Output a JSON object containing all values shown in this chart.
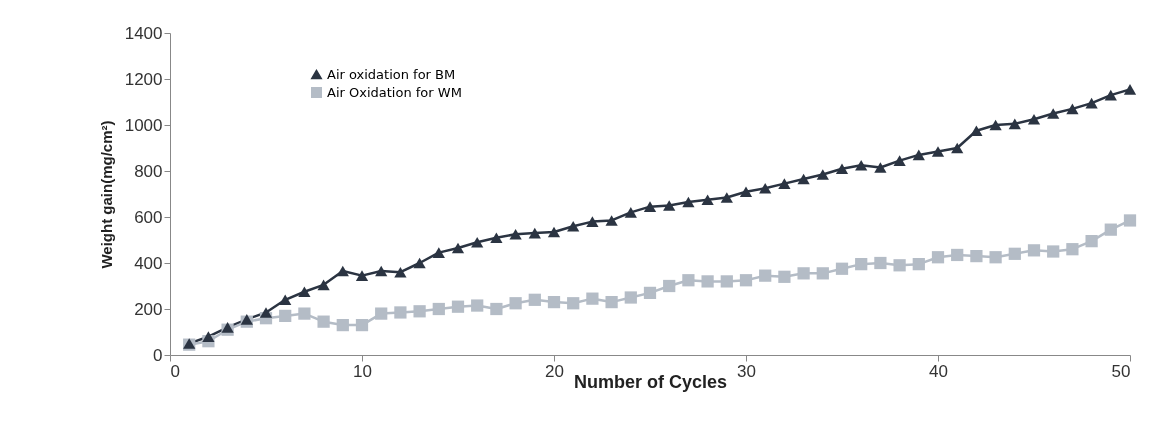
{
  "chart_data": {
    "type": "line",
    "xlabel": "Number of Cycles",
    "ylabel": "Weight gain(mg/cm²)",
    "x": [
      1,
      2,
      3,
      4,
      5,
      6,
      7,
      8,
      9,
      10,
      11,
      12,
      13,
      14,
      15,
      16,
      17,
      18,
      19,
      20,
      21,
      22,
      23,
      24,
      25,
      26,
      27,
      28,
      29,
      30,
      31,
      32,
      33,
      34,
      35,
      36,
      37,
      38,
      39,
      40,
      41,
      42,
      43,
      44,
      45,
      46,
      47,
      48,
      49,
      50
    ],
    "series": [
      {
        "name": "Air oxidation for BM",
        "color": "#2b3442",
        "marker": "triangle",
        "values": [
          50,
          80,
          120,
          155,
          185,
          240,
          275,
          305,
          365,
          345,
          365,
          360,
          400,
          445,
          465,
          490,
          510,
          525,
          530,
          535,
          560,
          580,
          585,
          620,
          645,
          650,
          665,
          675,
          685,
          710,
          725,
          745,
          765,
          785,
          810,
          825,
          815,
          845,
          870,
          885,
          900,
          975,
          1000,
          1005,
          1025,
          1050,
          1070,
          1095,
          1130,
          1155
        ]
      },
      {
        "name": "Air Oxidation for WM",
        "color": "#b4bcc6",
        "marker": "square",
        "values": [
          45,
          60,
          110,
          145,
          160,
          170,
          180,
          145,
          130,
          130,
          180,
          185,
          190,
          200,
          210,
          215,
          200,
          225,
          240,
          230,
          225,
          245,
          230,
          250,
          270,
          300,
          325,
          320,
          320,
          325,
          345,
          340,
          355,
          355,
          375,
          395,
          400,
          390,
          395,
          425,
          435,
          430,
          425,
          440,
          455,
          450,
          460,
          495,
          545,
          585
        ]
      }
    ],
    "xlim": [
      0,
      50
    ],
    "xticks": [
      0,
      10,
      20,
      30,
      40,
      50
    ],
    "ylim": [
      0,
      1400
    ],
    "yticks": [
      0,
      200,
      400,
      600,
      800,
      1000,
      1200,
      1400
    ],
    "legend": "top left",
    "line_style": "solid"
  }
}
